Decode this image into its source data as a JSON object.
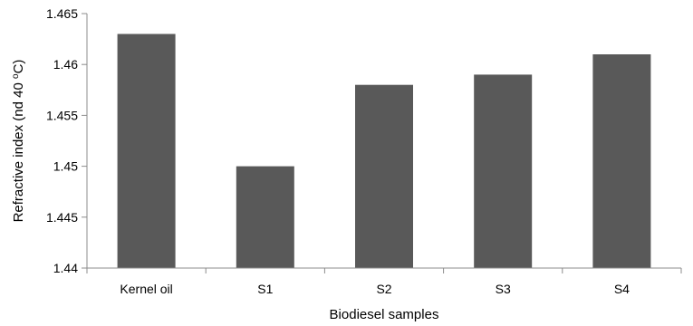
{
  "chart_data": {
    "type": "bar",
    "categories": [
      "Kernel oil",
      "S1",
      "S2",
      "S3",
      "S4"
    ],
    "values": [
      1.463,
      1.45,
      1.458,
      1.459,
      1.461
    ],
    "xlabel": "Biodiesel samples",
    "ylabel_main": "Refractive index (nd 40 ",
    "ylabel_sup": "o",
    "ylabel_tail": "C)",
    "ylim": [
      1.44,
      1.465
    ],
    "yticks": [
      "1.44",
      "1.445",
      "1.45",
      "1.455",
      "1.46",
      "1.465"
    ],
    "grid": false,
    "legend": "none",
    "bar_color": "#595959"
  }
}
